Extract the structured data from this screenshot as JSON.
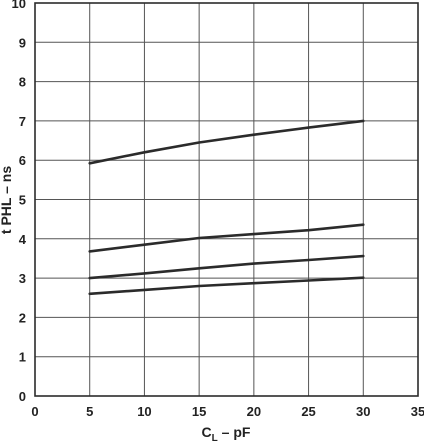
{
  "chart_data": {
    "type": "line",
    "title": "",
    "xlabel_main": "C",
    "xlabel_sub": "L",
    "xlabel_rest": " – pF",
    "ylabel": "t PHL – ns",
    "xlim": [
      0,
      35
    ],
    "ylim": [
      0,
      10
    ],
    "x_ticks": [
      0,
      5,
      10,
      15,
      20,
      25,
      30,
      35
    ],
    "y_ticks": [
      0,
      1,
      2,
      3,
      4,
      5,
      6,
      7,
      8,
      9,
      10
    ],
    "grid": true,
    "series": [
      {
        "x": [
          5,
          10,
          15,
          20,
          25,
          30
        ],
        "values": [
          5.92,
          6.2,
          6.45,
          6.65,
          6.83,
          7.0
        ]
      },
      {
        "x": [
          5,
          10,
          15,
          20,
          25,
          30
        ],
        "values": [
          3.68,
          3.85,
          4.02,
          4.12,
          4.22,
          4.36
        ]
      },
      {
        "x": [
          5,
          10,
          15,
          20,
          25,
          30
        ],
        "values": [
          3.0,
          3.12,
          3.25,
          3.37,
          3.46,
          3.56
        ]
      },
      {
        "x": [
          5,
          10,
          15,
          20,
          25,
          30
        ],
        "values": [
          2.6,
          2.7,
          2.8,
          2.87,
          2.94,
          3.01
        ]
      }
    ],
    "colors": {
      "line": "#2b2b2b",
      "grid": "#555555",
      "frame": "#2b2b2b",
      "background": "#ffffff"
    }
  }
}
